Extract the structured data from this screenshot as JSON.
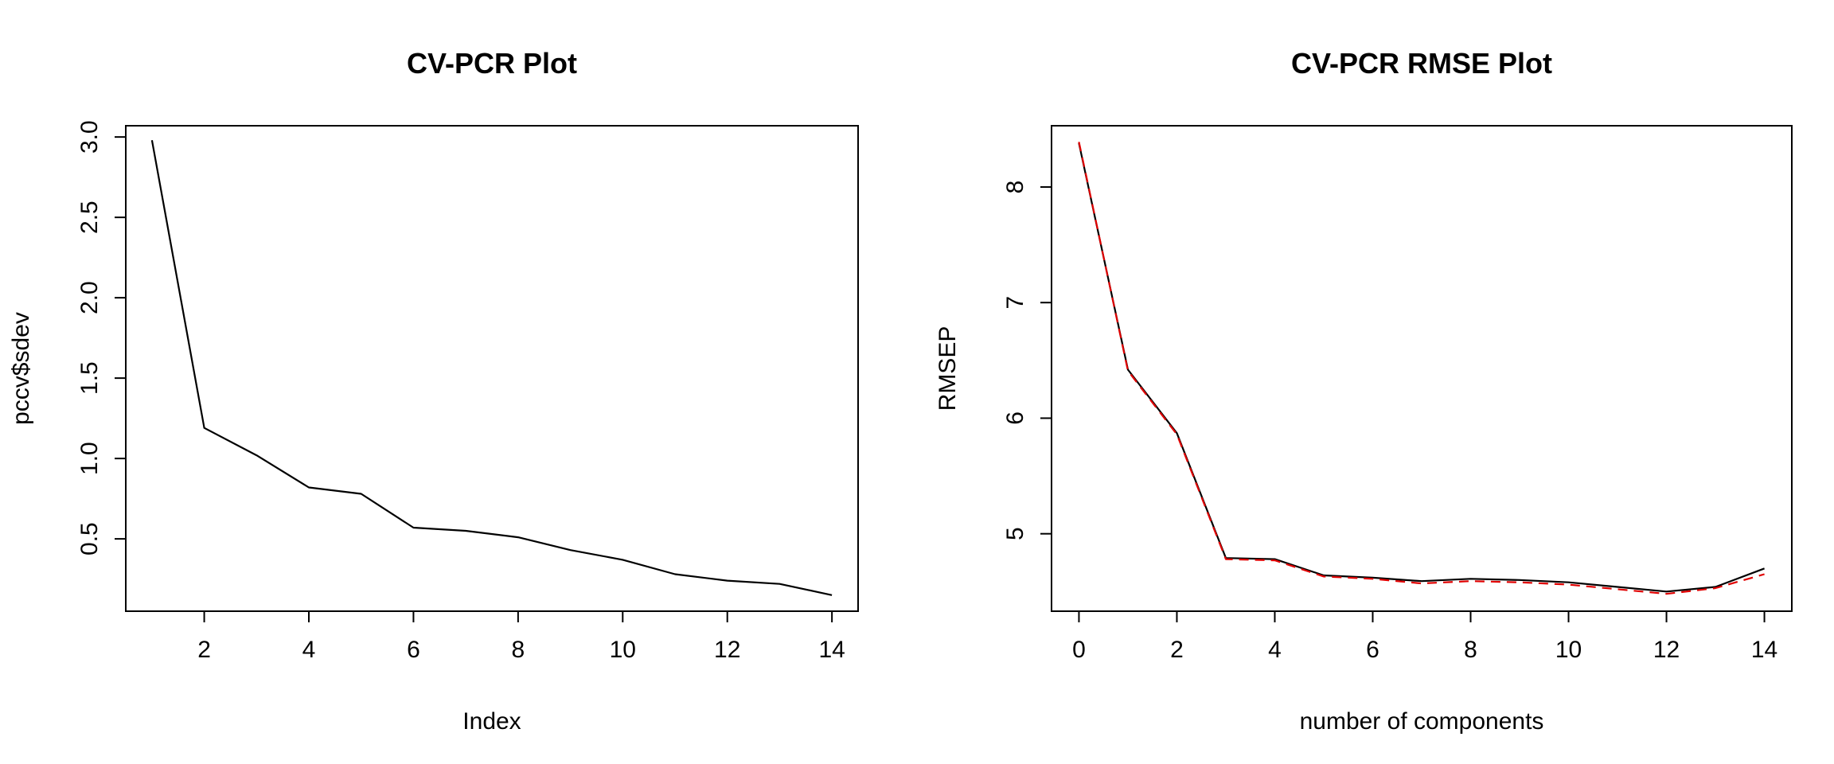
{
  "chart_data": [
    {
      "type": "line",
      "title": "CV-PCR Plot",
      "xlabel": "Index",
      "ylabel": "pccv$sdev",
      "xlim": [
        0.5,
        14.5
      ],
      "ylim": [
        0.05,
        3.07
      ],
      "xticks": [
        2,
        4,
        6,
        8,
        10,
        12,
        14
      ],
      "xtick_labels": [
        "2",
        "4",
        "6",
        "8",
        "10",
        "12",
        "14"
      ],
      "yticks": [
        0.5,
        1.0,
        1.5,
        2.0,
        2.5,
        3.0
      ],
      "ytick_labels": [
        "0.5",
        "1.0",
        "1.5",
        "2.0",
        "2.5",
        "3.0"
      ],
      "grid": false,
      "series": [
        {
          "color": "#000000",
          "dash": "solid",
          "x": [
            1,
            2,
            3,
            4,
            5,
            6,
            7,
            8,
            9,
            10,
            11,
            12,
            13,
            14
          ],
          "values": [
            2.98,
            1.19,
            1.02,
            0.82,
            0.78,
            0.57,
            0.55,
            0.51,
            0.43,
            0.37,
            0.28,
            0.24,
            0.22,
            0.15
          ]
        }
      ]
    },
    {
      "type": "line",
      "title": "CV-PCR RMSE Plot",
      "xlabel": "number of components",
      "ylabel": "RMSEP",
      "xlim": [
        -0.56,
        14.56
      ],
      "ylim": [
        4.33,
        8.53
      ],
      "xticks": [
        0,
        2,
        4,
        6,
        8,
        10,
        12,
        14
      ],
      "xtick_labels": [
        "0",
        "2",
        "4",
        "6",
        "8",
        "10",
        "12",
        "14"
      ],
      "yticks": [
        5,
        6,
        7,
        8
      ],
      "ytick_labels": [
        "5",
        "6",
        "7",
        "8"
      ],
      "grid": false,
      "series": [
        {
          "color": "#000000",
          "dash": "solid",
          "x": [
            0,
            1,
            2,
            3,
            4,
            5,
            6,
            7,
            8,
            9,
            10,
            11,
            12,
            13,
            14
          ],
          "values": [
            8.38,
            6.42,
            5.87,
            4.79,
            4.78,
            4.64,
            4.62,
            4.59,
            4.61,
            4.6,
            4.58,
            4.54,
            4.5,
            4.54,
            4.7
          ]
        },
        {
          "color": "#e00000",
          "dash": "dashed",
          "x": [
            0,
            1,
            2,
            3,
            4,
            5,
            6,
            7,
            8,
            9,
            10,
            11,
            12,
            13,
            14
          ],
          "values": [
            8.39,
            6.41,
            5.86,
            4.78,
            4.77,
            4.63,
            4.61,
            4.57,
            4.59,
            4.58,
            4.56,
            4.52,
            4.48,
            4.53,
            4.65
          ]
        }
      ]
    }
  ]
}
